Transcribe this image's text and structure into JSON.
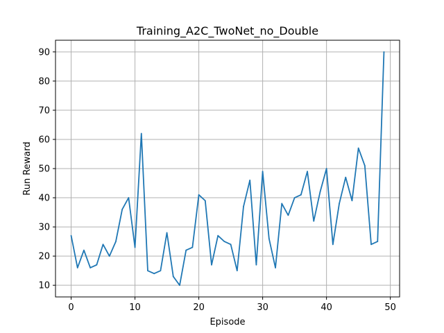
{
  "chart_data": {
    "type": "line",
    "title": "Training_A2C_TwoNet_no_Double",
    "xlabel": "Episode",
    "ylabel": "Run Reward",
    "xlim": [
      -2.45,
      51.45
    ],
    "ylim": [
      6,
      94
    ],
    "xticks": [
      0,
      10,
      20,
      30,
      40,
      50
    ],
    "yticks": [
      10,
      20,
      30,
      40,
      50,
      60,
      70,
      80,
      90
    ],
    "grid": true,
    "line_color": "#1f77b4",
    "series": [
      {
        "x": [
          0,
          1,
          2,
          3,
          4,
          5,
          6,
          7,
          8,
          9,
          10,
          11,
          12,
          13,
          14,
          15,
          16,
          17,
          18,
          19,
          20,
          21,
          22,
          23,
          24,
          25,
          26,
          27,
          28,
          29,
          30,
          31,
          32,
          33,
          34,
          35,
          36,
          37,
          38,
          39,
          40,
          41,
          42,
          43,
          44,
          45,
          46,
          47,
          48,
          49
        ],
        "values": [
          27,
          16,
          22,
          16,
          17,
          24,
          20,
          25,
          36,
          40,
          23,
          62,
          15,
          14,
          15,
          28,
          13,
          10,
          22,
          23,
          41,
          39,
          17,
          27,
          25,
          24,
          15,
          37,
          46,
          17,
          49,
          26,
          16,
          38,
          34,
          40,
          41,
          49,
          32,
          42,
          50,
          24,
          38,
          47,
          39,
          57,
          51,
          24,
          25,
          90
        ]
      }
    ]
  }
}
